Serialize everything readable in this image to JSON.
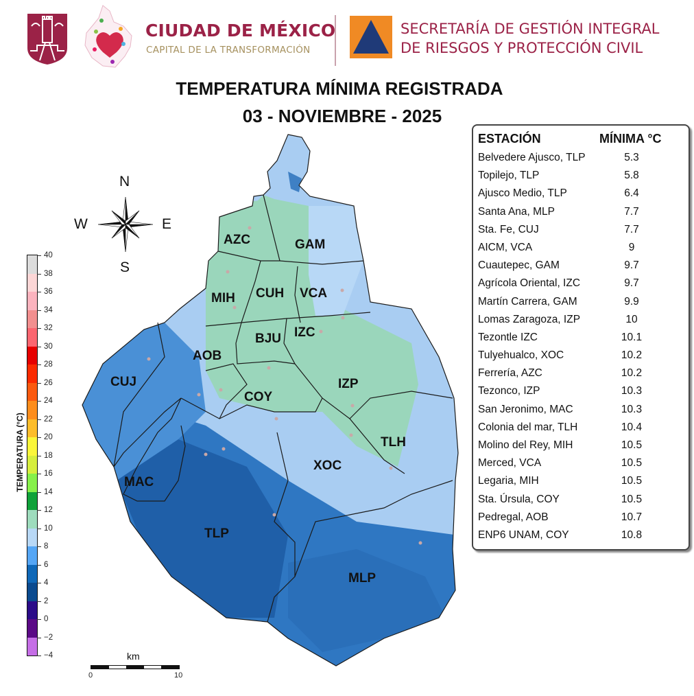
{
  "header": {
    "cdmx_title": "CIUDAD DE MÉXICO",
    "cdmx_subtitle": "CAPITAL DE LA TRANSFORMACIÓN",
    "secretaria_line1": "SECRETARÍA DE GESTIÓN INTEGRAL",
    "secretaria_line2": "DE RIESGOS Y PROTECCIÓN CIVIL",
    "brand_color": "#9b2247",
    "subtitle_color": "#a6915f",
    "pc_logo_orange": "#f08a24",
    "pc_logo_blue": "#1f3a78"
  },
  "title": {
    "line1": "TEMPERATURA MÍNIMA REGISTRADA",
    "line2": "03 - NOVIEMBRE - 2025"
  },
  "compass": {
    "n": "N",
    "s": "S",
    "e": "E",
    "w": "W"
  },
  "table": {
    "header_station": "ESTACIÓN",
    "header_min": "MÍNIMA °C",
    "rows": [
      {
        "station": "Belvedere Ajusco, TLP",
        "value": "5.3"
      },
      {
        "station": "Topilejo, TLP",
        "value": "5.8"
      },
      {
        "station": "Ajusco Medio, TLP",
        "value": "6.4"
      },
      {
        "station": "Santa Ana, MLP",
        "value": "7.7"
      },
      {
        "station": "Sta. Fe, CUJ",
        "value": "7.7"
      },
      {
        "station": "AICM, VCA",
        "value": "9"
      },
      {
        "station": "Cuautepec, GAM",
        "value": "9.7"
      },
      {
        "station": "Agrícola Oriental, IZC",
        "value": "9.7"
      },
      {
        "station": "Martín Carrera, GAM",
        "value": "9.9"
      },
      {
        "station": "Lomas Zaragoza, IZP",
        "value": "10"
      },
      {
        "station": "Tezontle IZC",
        "value": "10.1"
      },
      {
        "station": "Tulyehualco, XOC",
        "value": "10.2"
      },
      {
        "station": "Ferrería, AZC",
        "value": "10.2"
      },
      {
        "station": "Tezonco, IZP",
        "value": "10.3"
      },
      {
        "station": "San Jeronimo, MAC",
        "value": "10.3"
      },
      {
        "station": "Colonia del mar, TLH",
        "value": "10.4"
      },
      {
        "station": "Molino del Rey, MIH",
        "value": "10.5"
      },
      {
        "station": "Merced, VCA",
        "value": "10.5"
      },
      {
        "station": "Legaria, MIH",
        "value": "10.5"
      },
      {
        "station": "Sta. Úrsula, COY",
        "value": "10.5"
      },
      {
        "station": "Pedregal, AOB",
        "value": "10.7"
      },
      {
        "station": "ENP6 UNAM,  COY",
        "value": "10.8"
      }
    ]
  },
  "colorbar": {
    "title": "TEMPERATURA (°C)",
    "ticks": [
      "40",
      "38",
      "36",
      "34",
      "32",
      "30",
      "28",
      "26",
      "24",
      "22",
      "20",
      "18",
      "16",
      "14",
      "12",
      "10",
      "8",
      "6",
      "4",
      "2",
      "0",
      "−2",
      "−4"
    ],
    "colors_top_to_bottom": [
      "#dcdcdc",
      "#fcd6d6",
      "#fbb3be",
      "#f28f8f",
      "#fb6670",
      "#e60000",
      "#fb2a00",
      "#fb5a0f",
      "#fd8d1c",
      "#fdbd2b",
      "#fbf63a",
      "#d6ee3d",
      "#86f04a",
      "#10a23a",
      "#9edcbd",
      "#b8d8f6",
      "#55a6f5",
      "#0f68b8",
      "#0a4a8f",
      "#2b0c88",
      "#5b0a86",
      "#c56ee6"
    ]
  },
  "scale": {
    "unit": "km",
    "min": "0",
    "max": "10"
  },
  "districts": [
    {
      "code": "AZC"
    },
    {
      "code": "GAM"
    },
    {
      "code": "MIH"
    },
    {
      "code": "CUH"
    },
    {
      "code": "VCA"
    },
    {
      "code": "BJU"
    },
    {
      "code": "IZC"
    },
    {
      "code": "AOB"
    },
    {
      "code": "CUJ"
    },
    {
      "code": "COY"
    },
    {
      "code": "IZP"
    },
    {
      "code": "TLH"
    },
    {
      "code": "XOC"
    },
    {
      "code": "MAC"
    },
    {
      "code": "TLP"
    },
    {
      "code": "MLP"
    }
  ],
  "chart_data": {
    "type": "table",
    "title": "TEMPERATURA MÍNIMA REGISTRADA — 03 - NOVIEMBRE - 2025",
    "columns": [
      "ESTACIÓN",
      "MÍNIMA °C"
    ],
    "categories": [
      "Belvedere Ajusco, TLP",
      "Topilejo, TLP",
      "Ajusco Medio, TLP",
      "Santa Ana, MLP",
      "Sta. Fe, CUJ",
      "AICM, VCA",
      "Cuautepec, GAM",
      "Agrícola Oriental, IZC",
      "Martín Carrera, GAM",
      "Lomas Zaragoza, IZP",
      "Tezontle IZC",
      "Tulyehualco, XOC",
      "Ferrería, AZC",
      "Tezonco, IZP",
      "San Jeronimo, MAC",
      "Colonia del mar, TLH",
      "Molino del Rey, MIH",
      "Merced, VCA",
      "Legaria, MIH",
      "Sta. Úrsula, COY",
      "Pedregal, AOB",
      "ENP6 UNAM,  COY"
    ],
    "values": [
      5.3,
      5.8,
      6.4,
      7.7,
      7.7,
      9,
      9.7,
      9.7,
      9.9,
      10,
      10.1,
      10.2,
      10.2,
      10.3,
      10.3,
      10.4,
      10.5,
      10.5,
      10.5,
      10.5,
      10.7,
      10.8
    ],
    "colorbar_range": [
      -4,
      40
    ],
    "colorbar_label": "TEMPERATURA (°C)"
  }
}
